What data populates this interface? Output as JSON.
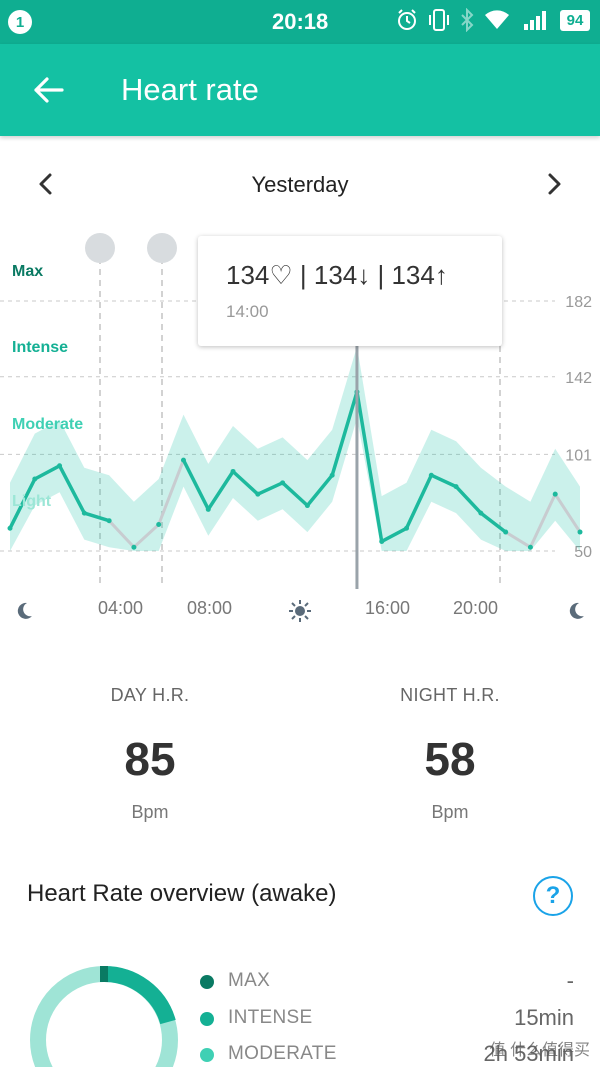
{
  "status_bar": {
    "notification_count": "1",
    "time": "20:18",
    "battery": "94",
    "icons": [
      "alarm-icon",
      "vibrate-icon",
      "bluetooth-icon",
      "wifi-icon",
      "signal-icon"
    ]
  },
  "app_bar": {
    "back_icon": "arrow-back-icon",
    "title": "Heart rate"
  },
  "date_nav": {
    "prev_icon": "chevron-left-icon",
    "label": "Yesterday",
    "next_icon": "chevron-right-icon"
  },
  "chart": {
    "zones": [
      "Max",
      "Intense",
      "Moderate",
      "Light"
    ],
    "y_ticks": [
      "182",
      "142",
      "101",
      "50"
    ],
    "x_ticks": [
      "04:00",
      "08:00",
      "16:00",
      "20:00"
    ],
    "x_icons": [
      "moon-icon",
      "sun-icon",
      "moon-icon"
    ],
    "markers": [
      "sleep-icon",
      "alarm-icon",
      "sleep-icon"
    ],
    "tooltip": {
      "values": "134♡ | 134↓ | 134↑",
      "time": "14:00"
    }
  },
  "chart_data": {
    "type": "line",
    "x": [
      "00:00",
      "01:00",
      "02:00",
      "03:00",
      "04:00",
      "05:00",
      "06:00",
      "07:00",
      "08:00",
      "09:00",
      "10:00",
      "11:00",
      "12:00",
      "13:00",
      "14:00",
      "15:00",
      "16:00",
      "17:00",
      "18:00",
      "19:00",
      "20:00",
      "21:00",
      "22:00",
      "23:00"
    ],
    "series": [
      {
        "values": [
          62,
          88,
          95,
          70,
          66,
          52,
          64,
          98,
          72,
          92,
          80,
          86,
          74,
          90,
          134,
          55,
          62,
          90,
          84,
          70,
          60,
          52,
          80,
          60
        ]
      }
    ],
    "ylim": [
      50,
      182
    ],
    "yticks": [
      50,
      101,
      142,
      182
    ],
    "xticks": [
      "04:00",
      "08:00",
      "16:00",
      "20:00"
    ],
    "selected": {
      "time": "14:00",
      "value": 134
    },
    "grid": true
  },
  "summary": {
    "day": {
      "title": "DAY H.R.",
      "value": "85",
      "unit": "Bpm"
    },
    "night": {
      "title": "NIGHT H.R.",
      "value": "58",
      "unit": "Bpm"
    }
  },
  "overview": {
    "title": "Heart Rate overview (awake)",
    "help": "?",
    "legend": [
      {
        "label": "MAX",
        "value": "-",
        "color": "#0a7a63"
      },
      {
        "label": "INTENSE",
        "value": "15min",
        "color": "#14b094"
      },
      {
        "label": "MODERATE",
        "value": "2h 53min",
        "color": "#3fd0b4"
      }
    ]
  },
  "watermark": "值 什么值得买"
}
